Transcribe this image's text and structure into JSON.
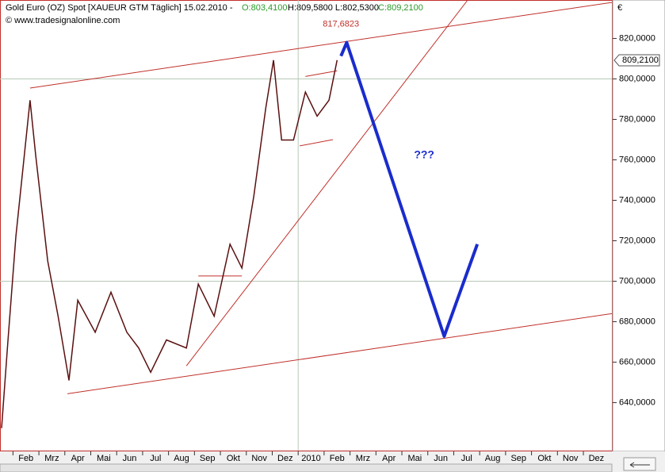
{
  "chart_data": {
    "type": "line",
    "title": "Gold Euro (OZ) Spot [XAUEUR GTM  Täglich] 15.02.2010 -",
    "ohlc_labels": [
      "O:803,4100",
      "H:809,5800 L:802,5300",
      "C:809,2100"
    ],
    "subtitle": "© www.tradesignalonline.com",
    "currency": "€",
    "xlim": [
      0.5,
      24.1
    ],
    "ylim": [
      616.3,
      839
    ],
    "xticks": [
      {
        "value": 1,
        "label": "Feb"
      },
      {
        "value": 2,
        "label": "Mrz"
      },
      {
        "value": 3,
        "label": "Apr"
      },
      {
        "value": 4,
        "label": "Mai"
      },
      {
        "value": 5,
        "label": "Jun"
      },
      {
        "value": 6,
        "label": "Jul"
      },
      {
        "value": 7,
        "label": "Aug"
      },
      {
        "value": 8,
        "label": "Sep"
      },
      {
        "value": 9,
        "label": "Okt"
      },
      {
        "value": 10,
        "label": "Nov"
      },
      {
        "value": 11,
        "label": "Dez"
      },
      {
        "value": 12,
        "label": "2010"
      },
      {
        "value": 13,
        "label": "Feb"
      },
      {
        "value": 14,
        "label": "Mrz"
      },
      {
        "value": 15,
        "label": "Apr"
      },
      {
        "value": 16,
        "label": "Mai"
      },
      {
        "value": 17,
        "label": "Jun"
      },
      {
        "value": 18,
        "label": "Jul"
      },
      {
        "value": 19,
        "label": "Aug"
      },
      {
        "value": 20,
        "label": "Sep"
      },
      {
        "value": 21,
        "label": "Okt"
      },
      {
        "value": 22,
        "label": "Nov"
      },
      {
        "value": 23,
        "label": "Dez"
      }
    ],
    "yticks": [
      {
        "value": 640,
        "label": "640,0000"
      },
      {
        "value": 660,
        "label": "660,0000"
      },
      {
        "value": 680,
        "label": "680,0000"
      },
      {
        "value": 700,
        "label": "700,0000"
      },
      {
        "value": 720,
        "label": "720,0000"
      },
      {
        "value": 740,
        "label": "740,0000"
      },
      {
        "value": 760,
        "label": "760,0000"
      },
      {
        "value": 780,
        "label": "780,0000"
      },
      {
        "value": 800,
        "label": "800,0000"
      },
      {
        "value": 820,
        "label": "820,0000"
      }
    ],
    "grid_y": [
      700,
      800
    ],
    "grid_x": [
      12
    ],
    "series": [
      {
        "name": "Gold Euro (OZ) Spot",
        "color": "#5a1010",
        "x": [
          0.56,
          0.81,
          1.11,
          1.66,
          1.88,
          2.34,
          2.74,
          3.16,
          3.5,
          4.17,
          4.78,
          5.39,
          5.85,
          6.31,
          6.92,
          7.69,
          8.15,
          8.76,
          9.37,
          9.83,
          10.29,
          10.75,
          11.05,
          11.36,
          11.82,
          12.28,
          12.73,
          13.19,
          13.5
        ],
        "values": [
          627.4,
          671,
          722,
          789.5,
          762,
          710,
          682.7,
          651,
          690.6,
          674.8,
          694.6,
          674.8,
          667,
          655,
          671,
          667,
          698.6,
          682.7,
          718.3,
          706.5,
          742,
          785.6,
          809.3,
          769.8,
          769.8,
          793.5,
          781.6,
          789.5,
          809.3
        ]
      }
    ],
    "last_value": {
      "value": 809.21,
      "label": "809,2100"
    },
    "projection": {
      "color": "#1a2ccc",
      "x": [
        13.65,
        13.87,
        17.63,
        18.91
      ],
      "values": [
        811.3,
        818,
        672.8,
        718.3
      ]
    },
    "trendline_color": "#c0302a",
    "trendlines": [
      {
        "x": [
          1.66,
          24.1
        ],
        "values": [
          795.5,
          837.8
        ]
      },
      {
        "x": [
          3.1,
          24.1
        ],
        "values": [
          644.4,
          684
        ]
      },
      {
        "x": [
          7.69,
          18.54
        ],
        "values": [
          658.2,
          839
        ]
      },
      {
        "x": [
          12.28,
          13.5
        ],
        "values": [
          801.2,
          804
        ]
      },
      {
        "x": [
          12.06,
          13.34
        ],
        "values": [
          766.9,
          770
        ]
      },
      {
        "x": [
          8.15,
          9.83
        ],
        "values": [
          702.6,
          702.6
        ]
      }
    ],
    "annotations": [
      {
        "text": "817,6823",
        "x": 13.65,
        "y": 827,
        "color": "#c0302a"
      },
      {
        "text": "???",
        "x": 16.86,
        "y": 762.2,
        "color": "#1a2ccc"
      }
    ]
  }
}
